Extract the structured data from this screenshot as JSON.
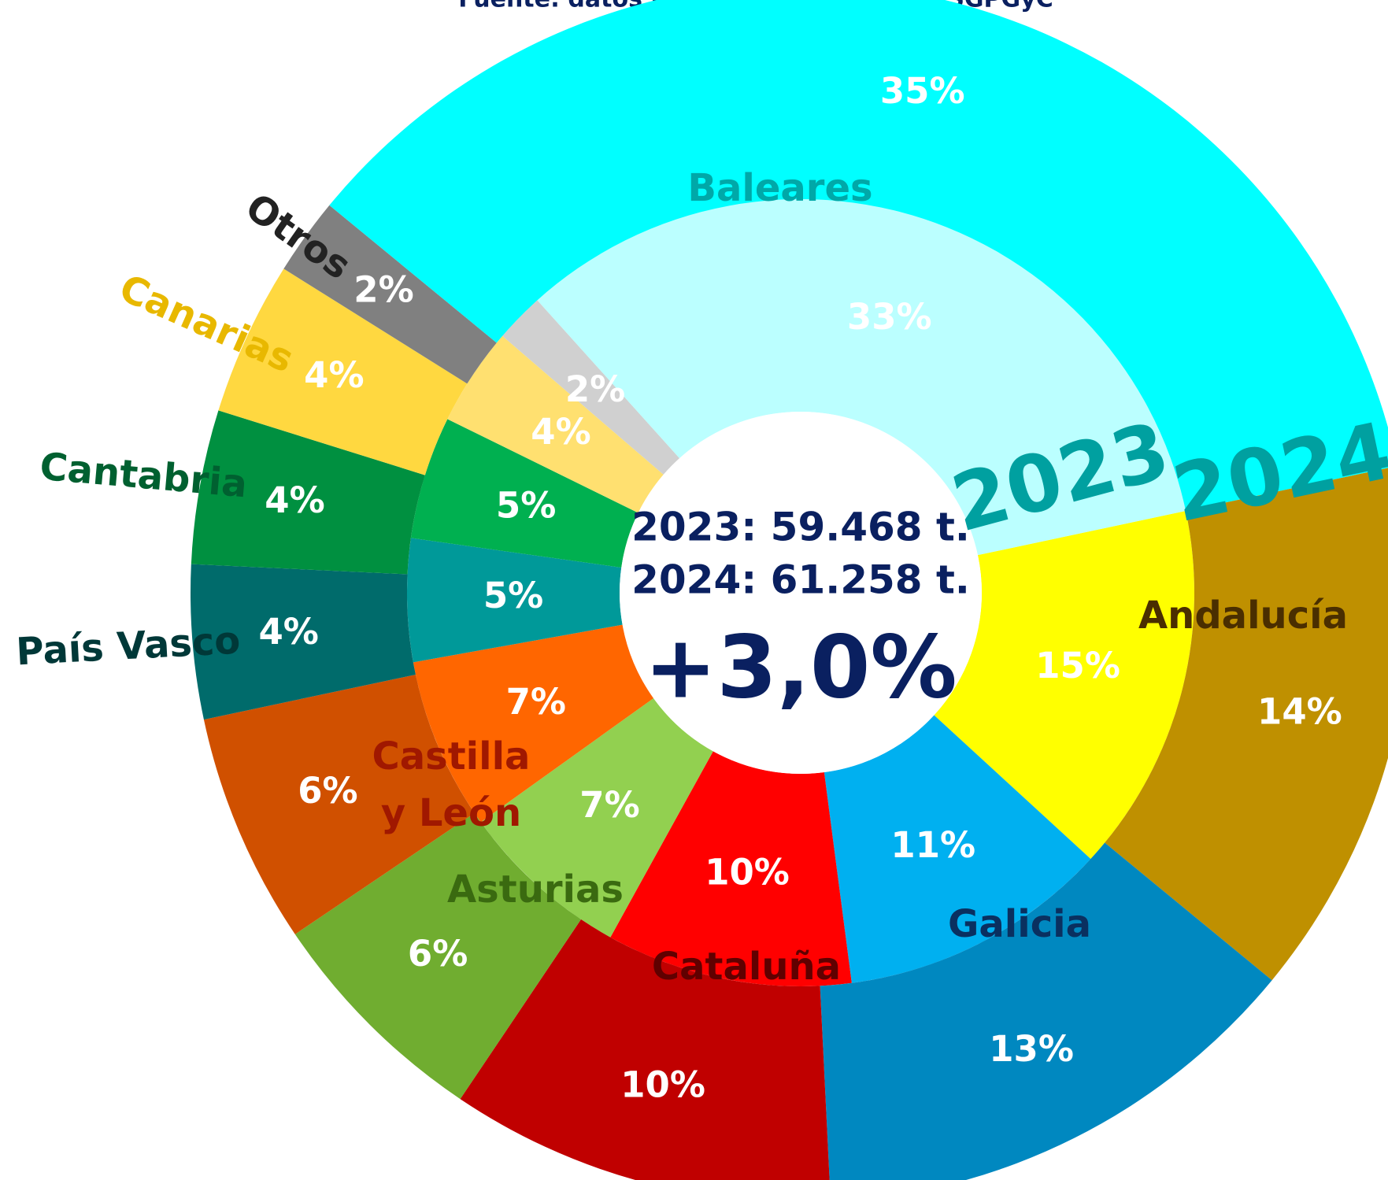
{
  "chart_data": {
    "type": "nested-donut",
    "subtitle": "Fuente: datos INFOLAC, elaboración SGPGyC",
    "categories": [
      "Andalucía",
      "Galicia",
      "Cataluña",
      "Asturias",
      "Castilla y León",
      "País Vasco",
      "Cantabria",
      "Canarias",
      "Otros",
      "Baleares"
    ],
    "label_colors": [
      "#4a2e00",
      "#0a3060",
      "#600000",
      "#3a6a10",
      "#a01800",
      "#003838",
      "#006030",
      "#e8b800",
      "#222222",
      "#00a8a8"
    ],
    "series": [
      {
        "name": "2023",
        "colors": [
          "#ffff00",
          "#00b0f0",
          "#ff0000",
          "#92d050",
          "#ff6600",
          "#009999",
          "#00b050",
          "#ffe070",
          "#d0d0d0",
          "#bbffff"
        ],
        "values": [
          15,
          11,
          10,
          7,
          7,
          5,
          5,
          4,
          2,
          33
        ],
        "value_labels": [
          "15%",
          "11%",
          "10%",
          "7%",
          "7%",
          "5%",
          "5%",
          "4%",
          "2%",
          "33%"
        ]
      },
      {
        "name": "2024",
        "colors": [
          "#bf9000",
          "#0088c0",
          "#c00000",
          "#70ad30",
          "#d05000",
          "#006b6b",
          "#009040",
          "#ffd840",
          "#808080",
          "#00ffff"
        ],
        "values": [
          14,
          13,
          10,
          6,
          6,
          4,
          4,
          4,
          2,
          35
        ],
        "value_labels": [
          "14%",
          "13%",
          "10%",
          "6%",
          "6%",
          "4%",
          "4%",
          "4%",
          "2%",
          "35%"
        ]
      }
    ],
    "center_lines": [
      "2023: 59.468 t.",
      "2024: 61.258 t.",
      "+3,0%"
    ],
    "year_label_color": "#00a0a0",
    "center_text_color": "#0a2060"
  }
}
